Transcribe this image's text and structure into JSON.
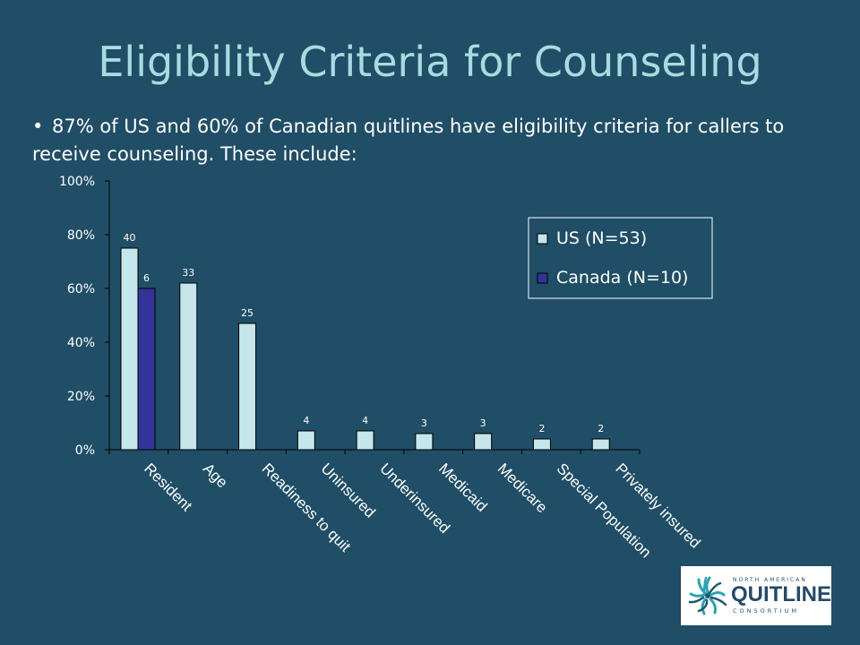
{
  "slide": {
    "title": "Eligibility Criteria for Counseling",
    "bullet_symbol": "•",
    "bullet_text": "87% of US and 60% of Canadian quitlines have eligibility criteria for callers to receive counseling. These include:"
  },
  "logo": {
    "top_text": "NORTH AMERICAN",
    "main_text": "QUITLINE",
    "bottom_text": "CONSORTIUM",
    "icon": "snowflake-cluster-logo-icon"
  },
  "colors": {
    "background": "#1f4e66",
    "title": "#a7dbe0",
    "us_bar": "#c5e6ea",
    "canada_bar": "#33339a",
    "axis": "#000000"
  },
  "chart_data": {
    "type": "bar",
    "categories": [
      "Resident",
      "Age",
      "Readiness to quit",
      "Uninsured",
      "Underinsured",
      "Medicaid",
      "Medicare",
      "Special Population",
      "Privately insured"
    ],
    "ylim": [
      0,
      100
    ],
    "yticks": [
      "0%",
      "20%",
      "40%",
      "60%",
      "80%",
      "100%"
    ],
    "grid": false,
    "legend_position": "top-right",
    "series": [
      {
        "name": "US (N=53)",
        "color": "#c5e6ea",
        "values": [
          75,
          62,
          47,
          7,
          7,
          6,
          6,
          4,
          4
        ],
        "labels": [
          "40",
          "33",
          "25",
          "4",
          "4",
          "3",
          "3",
          "2",
          "2"
        ]
      },
      {
        "name": "Canada (N=10)",
        "color": "#33339a",
        "values": [
          60,
          null,
          null,
          null,
          null,
          null,
          null,
          null,
          null
        ],
        "labels": [
          "6",
          "",
          "",
          "",
          "",
          "",
          "",
          "",
          ""
        ]
      }
    ]
  }
}
